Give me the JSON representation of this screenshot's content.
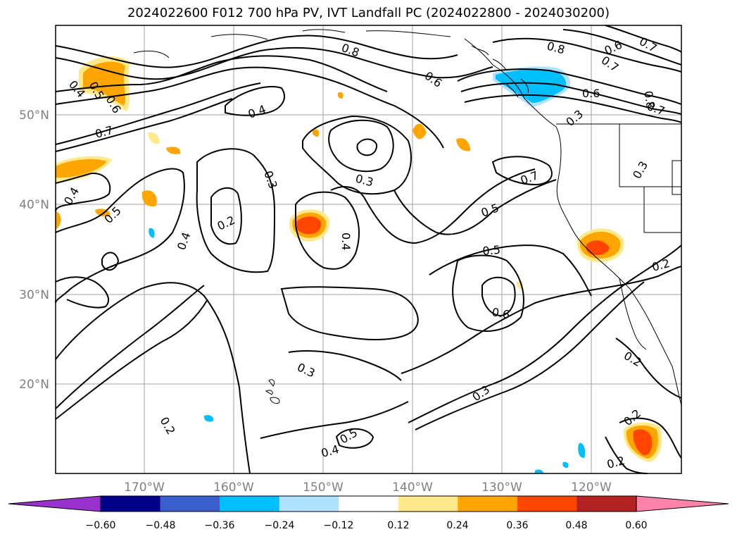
{
  "title": "2024022600 F012 700 hPa PV, IVT Landfall PC (2024022800 - 2024030200)",
  "lat_labels": [
    "50°N",
    "40°N",
    "30°N",
    "20°N"
  ],
  "lon_labels": [
    "170°W",
    "160°W",
    "150°W",
    "140°W",
    "130°W",
    "120°W"
  ],
  "contour_labels": [
    "0.4",
    "0.5",
    "0.6",
    "0.7",
    "0.4",
    "0.5",
    "0.4",
    "0.2",
    "0.3",
    "0.4",
    "0.3",
    "0.4",
    "0.8",
    "0.6",
    "0.5",
    "0.5",
    "0.6",
    "0.7",
    "0.8",
    "0.6",
    "0.7",
    "0.7",
    "0.6",
    "0.8",
    "0.7",
    "0.3",
    "0.3",
    "0.2",
    "0.2",
    "0.2",
    "0.2",
    "0.3",
    "0.3",
    "0.5",
    "0.4",
    "0.2"
  ],
  "colorbar": {
    "ticks": [
      "−0.60",
      "−0.48",
      "−0.36",
      "−0.24",
      "−0.12",
      "0.12",
      "0.24",
      "0.36",
      "0.48",
      "0.60"
    ],
    "colors": [
      "#9932cc",
      "#00008b",
      "#3a5fcd",
      "#00bfff",
      "#b0e2ff",
      "#ffffff",
      "#ffe98a",
      "#ffa500",
      "#ff4500",
      "#b22222",
      "#ff82ab"
    ]
  },
  "fill_colors": {
    "light_orange": "#ffe98a",
    "orange": "#ffa500",
    "red_orange": "#ff4500",
    "cyan": "#00bfff",
    "light_blue": "#b0e2ff"
  }
}
